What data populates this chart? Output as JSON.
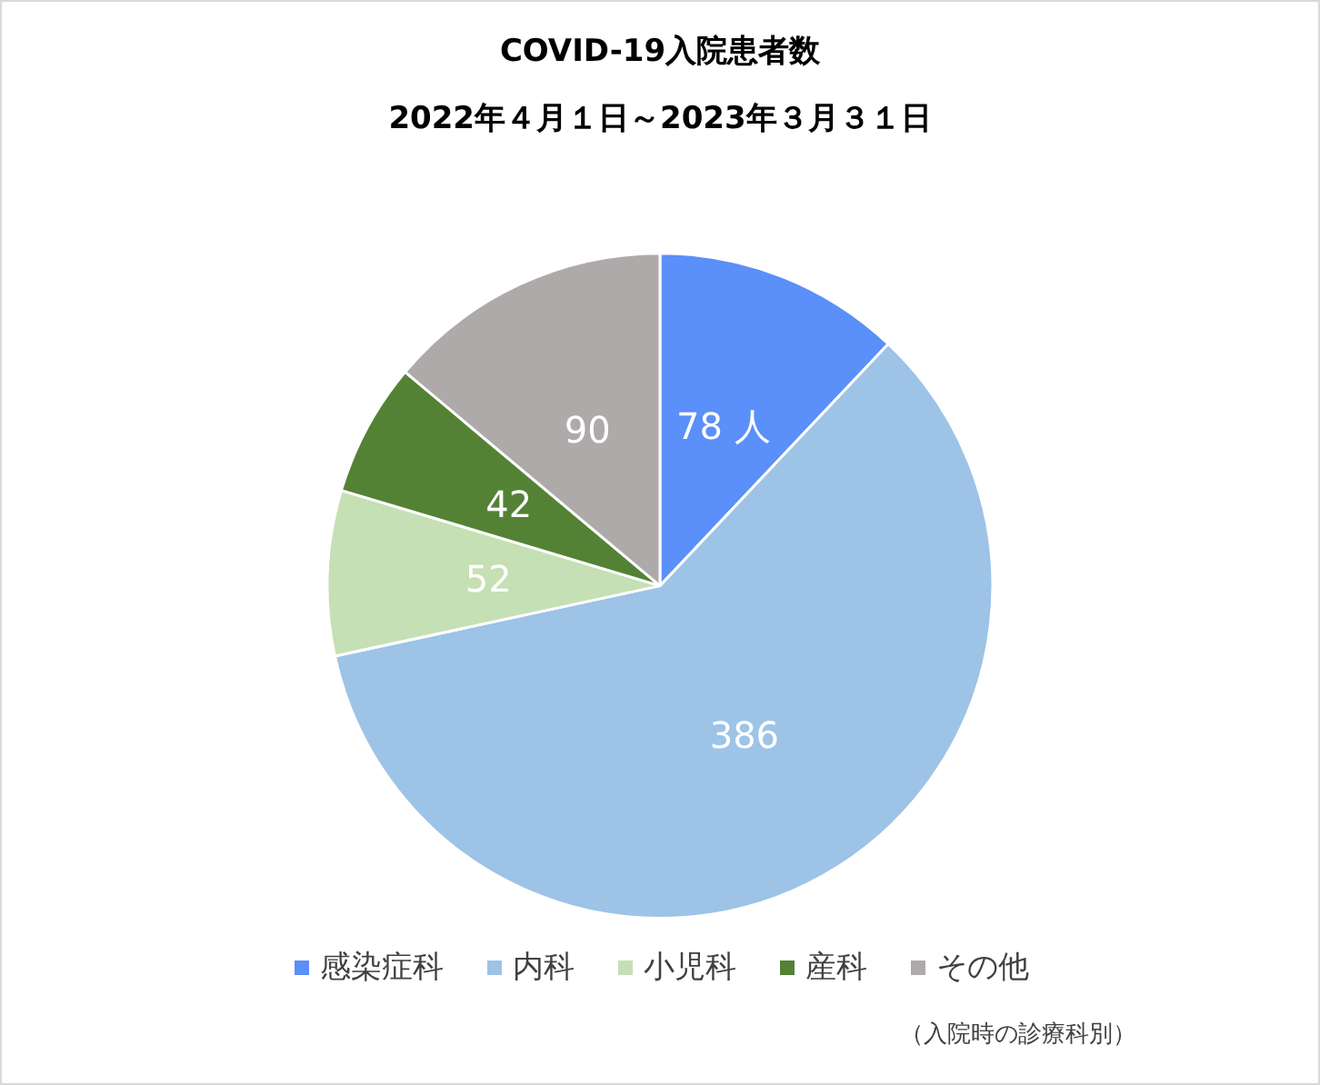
{
  "chart_data": {
    "type": "pie",
    "title": "COVID-19入院患者数",
    "subtitle": "2022年４月１日～2023年３月３１日",
    "categories": [
      "感染症科",
      "内科",
      "小児科",
      "産科",
      "その他"
    ],
    "values": [
      78,
      386,
      52,
      42,
      90
    ],
    "colors": [
      "#5b8ff9",
      "#9dc3e6",
      "#c5e0b4",
      "#548235",
      "#aeaaaa"
    ],
    "value_labels": [
      "78 人",
      "386",
      "52",
      "42",
      "90"
    ],
    "legend": "bottom",
    "annotations": [
      "（入院時の診療科別）"
    ]
  }
}
